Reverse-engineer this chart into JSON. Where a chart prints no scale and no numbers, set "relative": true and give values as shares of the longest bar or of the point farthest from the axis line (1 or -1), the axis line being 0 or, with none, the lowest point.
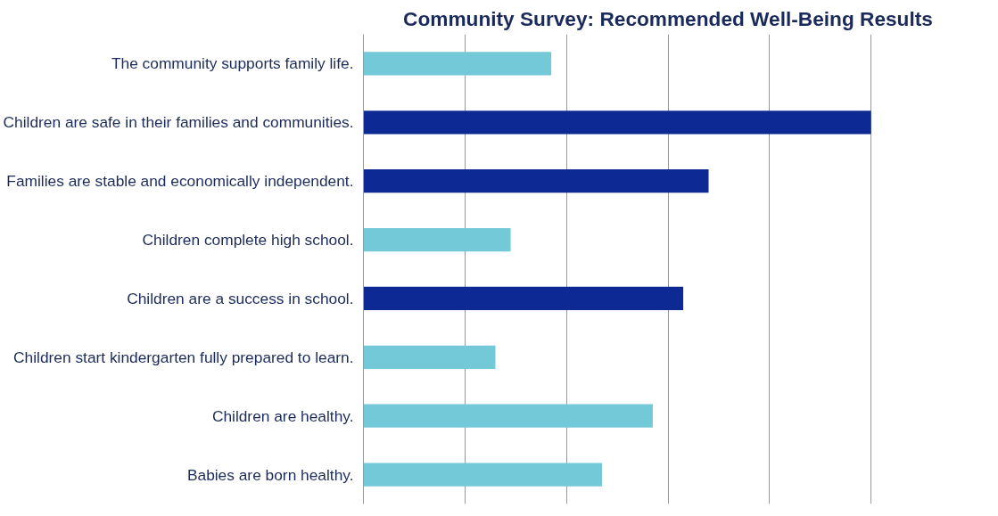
{
  "chart_data": {
    "type": "bar",
    "orientation": "horizontal",
    "relative": true,
    "title": "Community Survey: Recommended Well-Being Results",
    "categories": [
      "The community supports family life.",
      "Children are safe in their families and communities.",
      "Families are stable and economically independent.",
      "Children complete high school.",
      "Children are a success in school.",
      "Children start kindergarten fully prepared to learn.",
      "Children are healthy.",
      "Babies are born healthy."
    ],
    "values": [
      0.37,
      1.0,
      0.68,
      0.29,
      0.63,
      0.26,
      0.57,
      0.47
    ],
    "colors": [
      "#74c9d9",
      "#0d2a94",
      "#0d2a94",
      "#74c9d9",
      "#0d2a94",
      "#74c9d9",
      "#74c9d9",
      "#74c9d9"
    ],
    "grid": "x"
  }
}
